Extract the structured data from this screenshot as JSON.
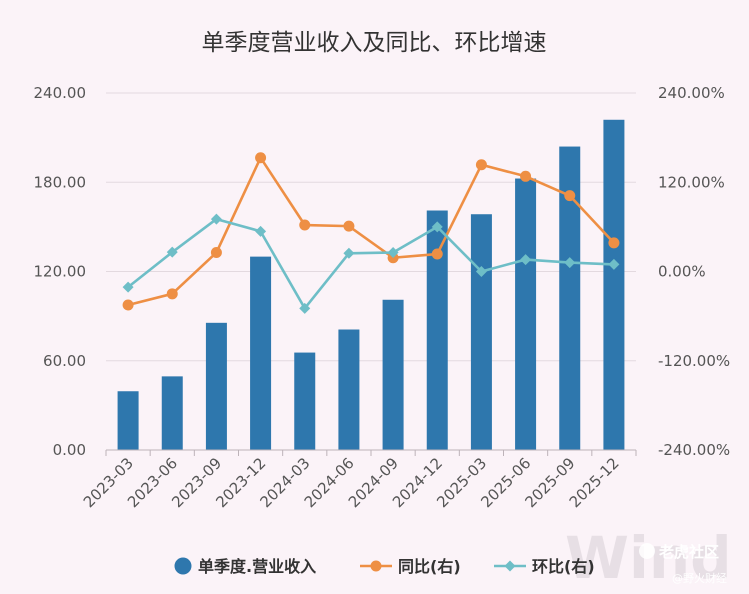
{
  "chart_data": {
    "type": "bar",
    "title": "单季度营业收入及同比、环比增速",
    "categories": [
      "2023-03",
      "2023-06",
      "2023-09",
      "2023-12",
      "2024-03",
      "2024-06",
      "2024-09",
      "2024-12",
      "2025-03",
      "2025-06",
      "2025-09",
      "2025-12"
    ],
    "series": [
      {
        "name": "单季度.营业收入",
        "type": "bar",
        "axis": "left",
        "color": "#2e77ad",
        "values": [
          39.5,
          49.5,
          85.5,
          130.0,
          65.5,
          81.0,
          101.0,
          161.0,
          158.5,
          182.5,
          204.0,
          222.0
        ]
      },
      {
        "name": "同比(右)",
        "type": "line",
        "axis": "right",
        "color": "#ee8f44",
        "marker": "circle",
        "values": [
          -45.0,
          -30.0,
          25.5,
          153.0,
          62.5,
          61.0,
          18.5,
          23.5,
          143.5,
          128.0,
          102.0,
          38.5
        ]
      },
      {
        "name": "环比(右)",
        "type": "line",
        "axis": "right",
        "color": "#6ebec7",
        "marker": "diamond",
        "values": [
          -21.0,
          26.0,
          70.5,
          54.0,
          -49.5,
          24.5,
          25.5,
          60.0,
          0.0,
          16.0,
          12.0,
          9.5
        ]
      }
    ],
    "y_left": {
      "min": 0,
      "max": 240,
      "ticks": [
        "0.00",
        "60.00",
        "120.00",
        "180.00",
        "240.00"
      ]
    },
    "y_right": {
      "min": -240,
      "max": 240,
      "ticks": [
        "-240.00%",
        "-120.00%",
        "0.00%",
        "120.00%",
        "240.00%"
      ]
    },
    "legend": "bottom",
    "grid": true
  },
  "watermark_text": "Wind",
  "brand": {
    "name": "老虎社区",
    "handle": "@野火财经"
  }
}
